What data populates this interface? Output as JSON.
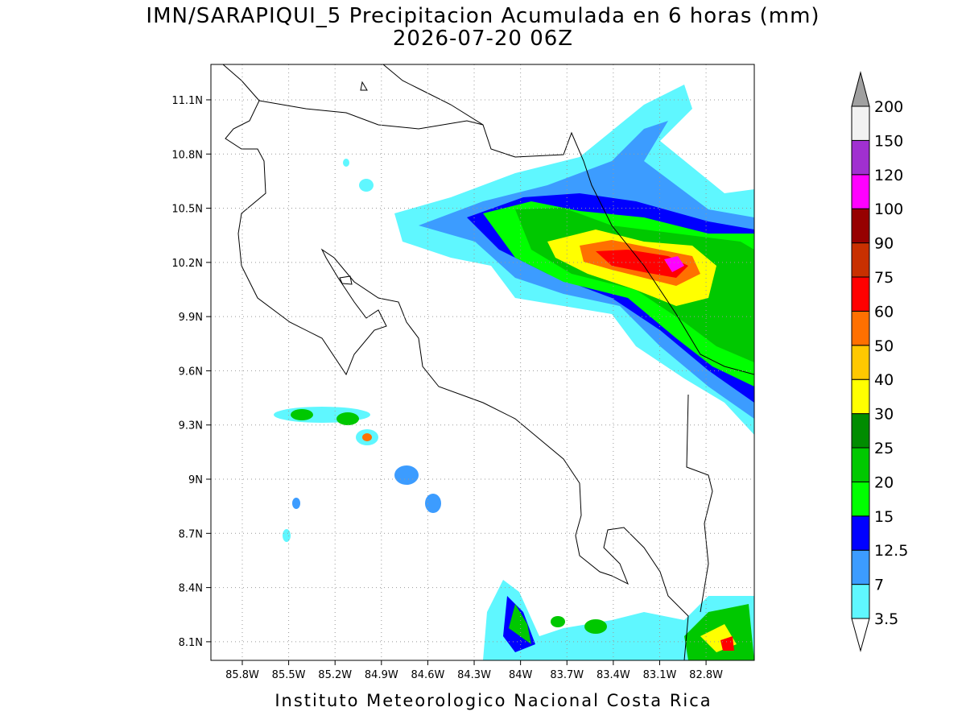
{
  "title": "IMN/SARAPIQUI_5 Precipitacion Acumulada en 6 horas (mm)",
  "subtitle": "2026-07-20 06Z",
  "lat_range": [
    7.997,
    11.296
  ],
  "lon_range": [
    -86.003,
    -82.488
  ],
  "lat_ticks": [
    {
      "value": 11.1,
      "label": "11.1N"
    },
    {
      "value": 10.8,
      "label": "10.8N"
    },
    {
      "value": 10.5,
      "label": "10.5N"
    },
    {
      "value": 10.2,
      "label": "10.2N"
    },
    {
      "value": 9.9,
      "label": "9.9N"
    },
    {
      "value": 9.6,
      "label": "9.6N"
    },
    {
      "value": 9.3,
      "label": "9.3N"
    },
    {
      "value": 9.0,
      "label": "9N"
    },
    {
      "value": 8.7,
      "label": "8.7N"
    },
    {
      "value": 8.4,
      "label": "8.4N"
    },
    {
      "value": 8.1,
      "label": "8.1N"
    }
  ],
  "lon_ticks": [
    {
      "value": -85.8,
      "label": "85.8W"
    },
    {
      "value": -85.5,
      "label": "85.5W"
    },
    {
      "value": -85.2,
      "label": "85.2W"
    },
    {
      "value": -84.9,
      "label": "84.9W"
    },
    {
      "value": -84.6,
      "label": "84.6W"
    },
    {
      "value": -84.3,
      "label": "84.3W"
    },
    {
      "value": -84.0,
      "label": "84W"
    },
    {
      "value": -83.7,
      "label": "83.7W"
    },
    {
      "value": -83.4,
      "label": "83.4W"
    },
    {
      "value": -83.1,
      "label": "83.1W"
    },
    {
      "value": -82.8,
      "label": "82.8W"
    }
  ],
  "colorbar": {
    "levels": [
      3.5,
      7,
      12.5,
      15,
      20,
      25,
      30,
      40,
      50,
      60,
      75,
      90,
      100,
      120,
      150,
      200
    ],
    "colors": [
      "#5ff7ff",
      "#3c9cff",
      "#0000ff",
      "#00ff00",
      "#00c800",
      "#008c00",
      "#ffff00",
      "#ffc800",
      "#ff7000",
      "#ff0000",
      "#c83000",
      "#960000",
      "#ff00ff",
      "#a030d0",
      "#f2f2f2"
    ],
    "below_color": "#ffffff",
    "above_color": "#a0a0a0"
  },
  "footer": "Instituto Meteorologico Nacional Costa Rica"
}
